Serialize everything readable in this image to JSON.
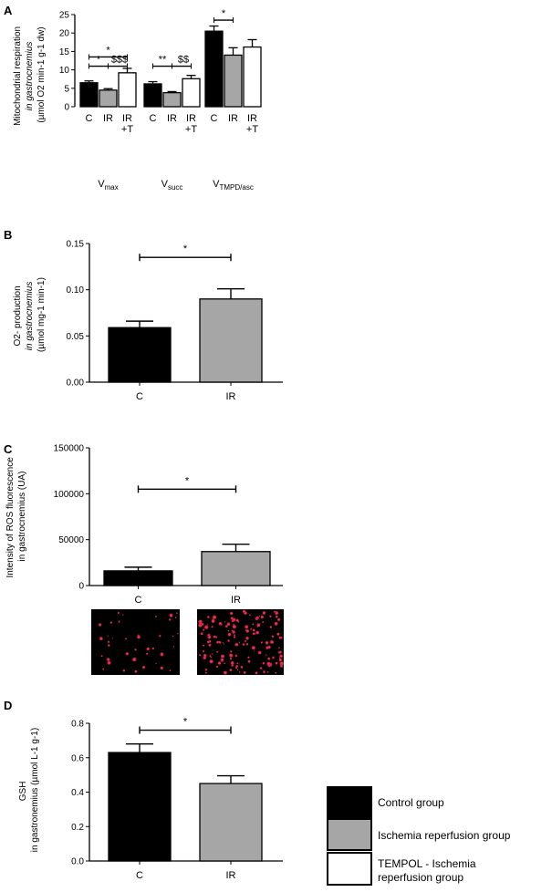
{
  "figure": {
    "legend": {
      "items": [
        {
          "label": "Control group",
          "color": "#000000"
        },
        {
          "label": "Ischemia reperfusion group",
          "color": "#a6a6a6"
        },
        {
          "label": "TEMPOL - Ischemia reperfusion group",
          "color": "#ffffff"
        }
      ]
    }
  },
  "chart_data": [
    {
      "panel": "A",
      "type": "bar",
      "ylabel_line1": "Mitochondrial respiration",
      "ylabel_line2": "in gastrocnemius",
      "ylabel_line3": "(µmol O2 min-1 g-1 dw)",
      "ylim": [
        0,
        25
      ],
      "yticks": [
        0,
        5,
        10,
        15,
        20,
        25
      ],
      "groups": [
        {
          "name": "Vmax",
          "base": "V",
          "sub": "max"
        },
        {
          "name": "Vsucc",
          "base": "V",
          "sub": "succ"
        },
        {
          "name": "VTMPD/asc",
          "base": "V",
          "sub": "TMPD/asc"
        }
      ],
      "bar_labels": [
        "C",
        "IR",
        "IR +T"
      ],
      "series": [
        {
          "name": "C",
          "color": "#000000",
          "values": [
            6.5,
            6.2,
            20.5
          ],
          "errors": [
            0.5,
            0.6,
            1.4
          ]
        },
        {
          "name": "IR",
          "color": "#a6a6a6",
          "values": [
            4.5,
            3.8,
            14.0
          ],
          "errors": [
            0.4,
            0.3,
            2.0
          ]
        },
        {
          "name": "IR +T",
          "color": "#ffffff",
          "values": [
            9.2,
            7.6,
            16.2
          ],
          "errors": [
            1.2,
            0.9,
            2.0
          ]
        }
      ],
      "annotations": [
        {
          "group": 0,
          "from": 0,
          "to": 2,
          "level": 13.5,
          "label": "*"
        },
        {
          "group": 0,
          "from": 0,
          "to": 1,
          "level": 11.0,
          "label": "*",
          "label_pos": "center"
        },
        {
          "group": 0,
          "from": 1,
          "to": 2,
          "level": 11.0,
          "label": "$$$",
          "label_pos": "right",
          "merged": true
        },
        {
          "group": 1,
          "from": 0,
          "to": 1,
          "level": 11.0,
          "label": "**",
          "label_pos": "center"
        },
        {
          "group": 1,
          "from": 1,
          "to": 2,
          "level": 11.0,
          "label": "$$",
          "label_pos": "right",
          "merged": true
        },
        {
          "group": 2,
          "from": 0,
          "to": 1,
          "level": 23.5,
          "label": "*"
        }
      ]
    },
    {
      "panel": "B",
      "type": "bar",
      "ylabel_line1": "O2- production",
      "ylabel_line2": "in gastrocnemius",
      "ylabel_line3": "(µmol mg-1 min-1)",
      "ylim": [
        0,
        0.15
      ],
      "yticks": [
        "0.00",
        "0.05",
        "0.10",
        "0.15"
      ],
      "categories": [
        "C",
        "IR"
      ],
      "values": [
        0.059,
        0.09
      ],
      "errors": [
        0.007,
        0.011
      ],
      "colors": [
        "#000000",
        "#a6a6a6"
      ],
      "significance": {
        "level": 0.135,
        "label": "*"
      }
    },
    {
      "panel": "C",
      "type": "bar",
      "ylabel_line1": "Intensity of ROS fluorescence",
      "ylabel_line2": "in gastrocnemius (UA)",
      "ylim": [
        0,
        150000
      ],
      "yticks": [
        "0",
        "50000",
        "100000",
        "150000"
      ],
      "categories": [
        "C",
        "IR"
      ],
      "values": [
        16000,
        37000
      ],
      "errors": [
        4000,
        8000
      ],
      "colors": [
        "#000000",
        "#a6a6a6"
      ],
      "significance": {
        "level": 105000,
        "label": "*"
      }
    },
    {
      "panel": "D",
      "type": "bar",
      "ylabel_line1": "GSH",
      "ylabel_line2": "in gastronemius (µmol L-1 g-1)",
      "ylim": [
        0,
        0.8
      ],
      "yticks": [
        "0.0",
        "0.2",
        "0.4",
        "0.6",
        "0.8"
      ],
      "categories": [
        "C",
        "IR"
      ],
      "values": [
        0.63,
        0.45
      ],
      "errors": [
        0.05,
        0.045
      ],
      "colors": [
        "#000000",
        "#a6a6a6"
      ],
      "significance": {
        "level": 0.76,
        "label": "*"
      }
    }
  ]
}
